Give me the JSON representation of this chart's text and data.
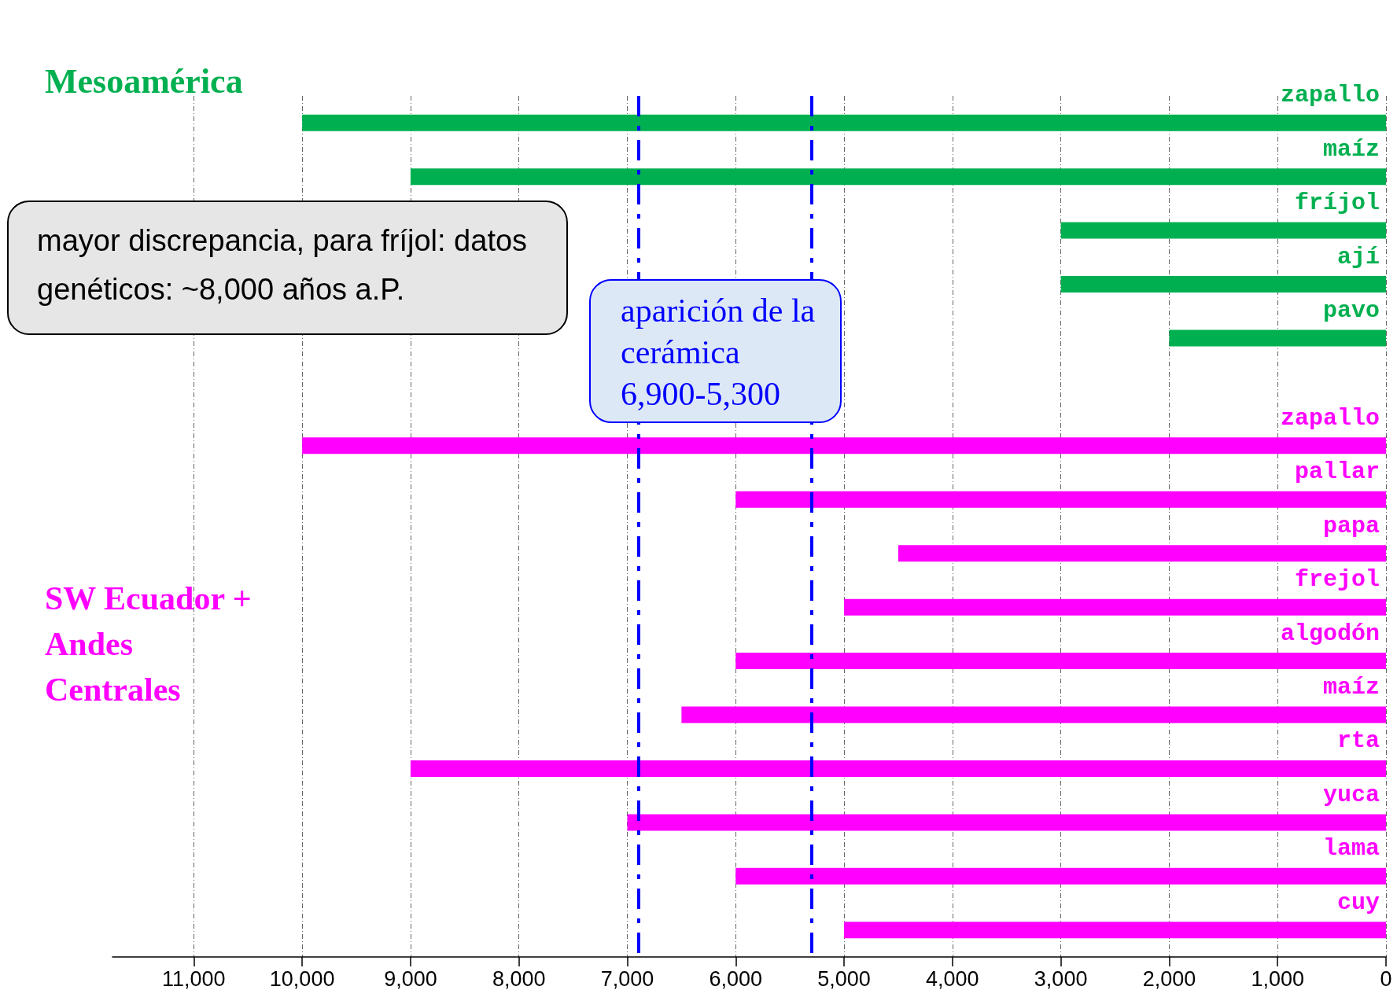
{
  "chart_data": {
    "type": "bar",
    "orientation": "horizontal",
    "categories": [
      "zapallo",
      "maíz",
      "fríjol",
      "ají",
      "pavo",
      null,
      "zapallo",
      "pallar",
      "papa",
      "frejol",
      "algodón",
      "maíz",
      "rta",
      "yuca",
      "lama",
      "cuy"
    ],
    "base": [
      0,
      0,
      0,
      0,
      0,
      null,
      0,
      0,
      0,
      0,
      0,
      0,
      0,
      0,
      0,
      0
    ],
    "values": [
      10000,
      9000,
      3000,
      3000,
      2000,
      null,
      10000,
      6000,
      4500,
      5000,
      6000,
      6500,
      9000,
      7000,
      6000,
      5000
    ],
    "colors": [
      "#00b050",
      "#00b050",
      "#00b050",
      "#00b050",
      "#00b050",
      null,
      "#ff00ff",
      "#ff00ff",
      "#ff00ff",
      "#ff00ff",
      "#ff00ff",
      "#ff00ff",
      "#ff00ff",
      "#ff00ff",
      "#ff00ff",
      "#ff00ff"
    ],
    "xlim": [
      11750,
      0
    ],
    "xticks": [
      {
        "value": 11000,
        "label": "11,000"
      },
      {
        "value": 10000,
        "label": "10,000"
      },
      {
        "value": 9000,
        "label": "9,000"
      },
      {
        "value": 8000,
        "label": "8,000"
      },
      {
        "value": 7000,
        "label": "7,000"
      },
      {
        "value": 6000,
        "label": "6,000"
      },
      {
        "value": 5000,
        "label": "5,000"
      },
      {
        "value": 4000,
        "label": "4,000"
      },
      {
        "value": 3000,
        "label": "3,000"
      },
      {
        "value": 2000,
        "label": "2,000"
      },
      {
        "value": 1000,
        "label": "1,000"
      },
      0
    ],
    "grid": "x",
    "ref_lines": [
      {
        "axis": "x",
        "value": 6900,
        "color": "#0000ff",
        "line_style": "dashed"
      },
      {
        "axis": "x",
        "value": 5300,
        "color": "#0000ff",
        "line_style": "dashed"
      }
    ],
    "annotations": [
      "Mesoamérica",
      "SW Ecuador + Andes Centrales",
      "mayor discrepancia, para fríjol: datos genéticos: ~8,000 años a.P.",
      "aparición de la cerámica 6,900-5,300"
    ]
  }
}
